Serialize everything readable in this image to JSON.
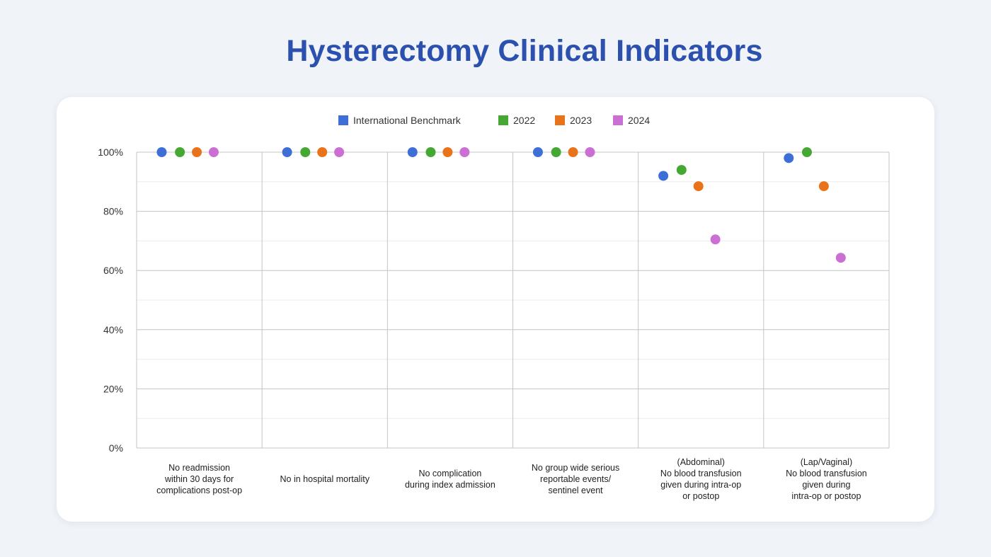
{
  "title": "Hysterectomy Clinical Indicators",
  "chart_data": {
    "type": "scatter",
    "title": "Hysterectomy Clinical Indicators",
    "xlabel": "",
    "ylabel": "",
    "ylim": [
      0,
      100
    ],
    "yticks": [
      "0%",
      "20%",
      "40%",
      "60%",
      "80%",
      "100%"
    ],
    "grid": true,
    "legend_position": "top-center",
    "categories": [
      [
        "No readmission",
        "within 30 days for",
        "complications post-op"
      ],
      [
        "No in hospital mortality"
      ],
      [
        "No complication",
        "during index admission"
      ],
      [
        "No group wide serious",
        "reportable events/",
        "sentinel event"
      ],
      [
        "(Abdominal)",
        "No blood transfusion",
        "given during intra-op",
        "or postop"
      ],
      [
        "(Lap/Vaginal)",
        "No blood transfusion",
        "given during",
        "intra-op or postop"
      ]
    ],
    "series": [
      {
        "name": "International Benchmark",
        "color": "#3d6fd6",
        "values": [
          100,
          100,
          100,
          100,
          92,
          98
        ]
      },
      {
        "name": "2022",
        "color": "#44a832",
        "values": [
          100,
          100,
          100,
          100,
          94,
          100
        ]
      },
      {
        "name": "2023",
        "color": "#e8731a",
        "values": [
          100,
          100,
          100,
          100,
          88.5,
          88.5
        ]
      },
      {
        "name": "2024",
        "color": "#cc6fd4",
        "values": [
          100,
          100,
          100,
          100,
          70.5,
          64.3
        ]
      }
    ]
  }
}
